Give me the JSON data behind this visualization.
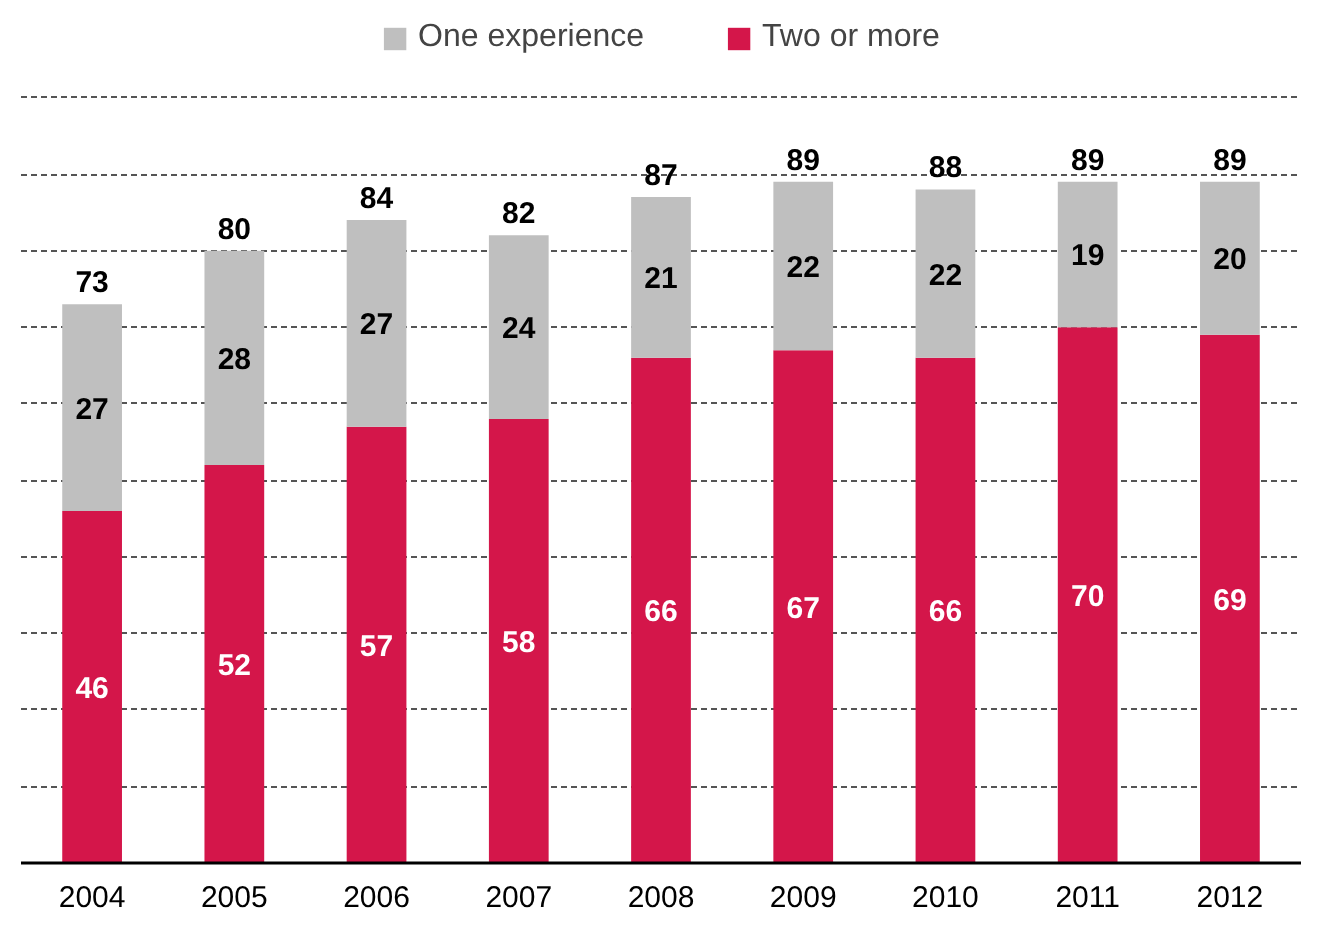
{
  "chart_data": {
    "type": "bar",
    "stacked": true,
    "categories": [
      "2004",
      "2005",
      "2006",
      "2007",
      "2008",
      "2009",
      "2010",
      "2011",
      "2012"
    ],
    "series": [
      {
        "name": "Two or more",
        "color": "#d4164a",
        "values": [
          46,
          52,
          57,
          58,
          66,
          67,
          66,
          70,
          69
        ]
      },
      {
        "name": "One experience",
        "color": "#bfbfbf",
        "values": [
          27,
          28,
          27,
          24,
          21,
          22,
          22,
          19,
          20
        ]
      }
    ],
    "totals": [
      "73",
      "80",
      "84",
      "82",
      "87",
      "89",
      "88",
      "89",
      "89"
    ],
    "ylim": [
      0,
      110
    ],
    "yticks": [
      {
        "value": 0,
        "label": null
      },
      {
        "value": 10,
        "label": null
      },
      {
        "value": 20,
        "label": null
      },
      {
        "value": 30,
        "label": null
      },
      {
        "value": 40,
        "label": null
      },
      {
        "value": 50,
        "label": null
      },
      {
        "value": 60,
        "label": null
      },
      {
        "value": 70,
        "label": null
      },
      {
        "value": 80,
        "label": null
      },
      {
        "value": 90,
        "label": null
      },
      {
        "value": 100,
        "label": null
      }
    ],
    "tick_labels": "x",
    "grid": "y",
    "legend": "top",
    "data_labels": true
  }
}
